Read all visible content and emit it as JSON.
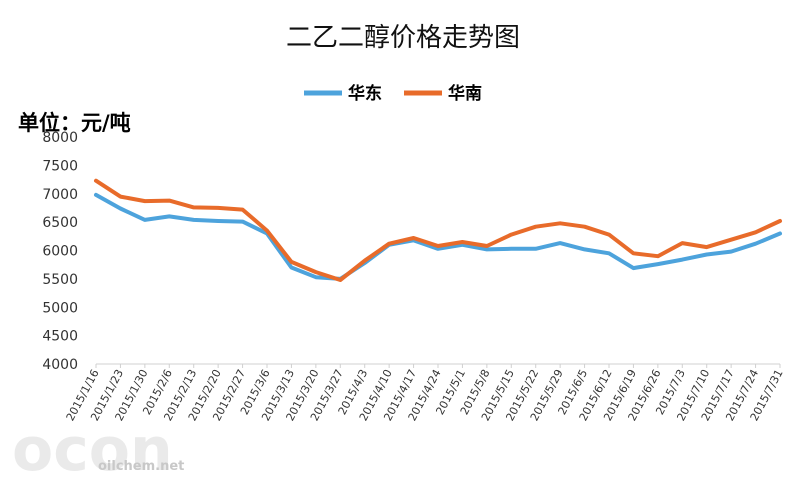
{
  "chart_data": {
    "type": "line",
    "title": "二乙二醇价格走势图",
    "unit_label": "单位：元/吨",
    "ylim": [
      4000,
      8000
    ],
    "y_ticks": [
      4000,
      4500,
      5000,
      5500,
      6000,
      6500,
      7000,
      7500,
      8000
    ],
    "grid": false,
    "legend_position": "top-center",
    "x": [
      "2015/1/16",
      "2015/1/23",
      "2015/1/30",
      "2015/2/6",
      "2015/2/13",
      "2015/2/20",
      "2015/2/27",
      "2015/3/6",
      "2015/3/13",
      "2015/3/20",
      "2015/3/27",
      "2015/4/3",
      "2015/4/10",
      "2015/4/17",
      "2015/4/24",
      "2015/5/1",
      "2015/5/8",
      "2015/5/15",
      "2015/5/22",
      "2015/5/29",
      "2015/6/5",
      "2015/6/12",
      "2015/6/19",
      "2015/6/26",
      "2015/7/3",
      "2015/7/10",
      "2015/7/17",
      "2015/7/24",
      "2015/7/31"
    ],
    "series": [
      {
        "name": "华东",
        "color": "#4da3dc",
        "values": [
          6980,
          6740,
          6540,
          6600,
          6540,
          6520,
          6510,
          6300,
          5700,
          5530,
          5500,
          5780,
          6100,
          6180,
          6030,
          6100,
          6020,
          6030,
          6030,
          6130,
          6020,
          5950,
          5690,
          5760,
          5840,
          5930,
          5980,
          6120,
          6300
        ]
      },
      {
        "name": "华南",
        "color": "#e86b2a",
        "values": [
          7230,
          6950,
          6870,
          6880,
          6760,
          6750,
          6720,
          6350,
          5800,
          5620,
          5480,
          5820,
          6120,
          6220,
          6080,
          6150,
          6080,
          6280,
          6420,
          6480,
          6420,
          6280,
          5950,
          5900,
          6130,
          6060,
          6190,
          6320,
          6520
        ]
      }
    ]
  },
  "watermark": {
    "logo": "ocon",
    "site": "oilchem.net"
  }
}
